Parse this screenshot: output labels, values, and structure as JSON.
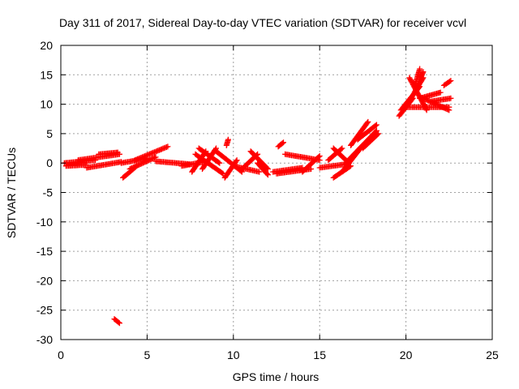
{
  "chart_data": {
    "type": "scatter",
    "title": "Day 311 of 2017, Sidereal Day-to-day VTEC variation (SDTVAR) for receiver vcvl",
    "xlabel": "GPS time / hours",
    "ylabel": "SDTVAR / TECUs",
    "xlim": [
      0,
      25
    ],
    "ylim": [
      -30,
      20
    ],
    "xticks": [
      0,
      5,
      10,
      15,
      20,
      25
    ],
    "yticks": [
      -30,
      -25,
      -20,
      -15,
      -10,
      -5,
      0,
      5,
      10,
      15,
      20
    ],
    "grid": true,
    "marker": "plus",
    "series_color": "#ff0000",
    "segments": [
      {
        "x0": 0.2,
        "x1": 2.0,
        "y0": 0.0,
        "y1": 0.5
      },
      {
        "x0": 0.3,
        "x1": 1.5,
        "y0": -0.5,
        "y1": -0.3
      },
      {
        "x0": 1.0,
        "x1": 3.4,
        "y0": 0.5,
        "y1": 1.5
      },
      {
        "x0": 1.5,
        "x1": 3.5,
        "y0": -0.8,
        "y1": 0.2
      },
      {
        "x0": 2.2,
        "x1": 3.3,
        "y0": 1.5,
        "y1": 1.8
      },
      {
        "x0": 3.6,
        "x1": 4.4,
        "y0": -2.5,
        "y1": -0.5
      },
      {
        "x0": 3.5,
        "x1": 5.0,
        "y0": 0.0,
        "y1": 0.8
      },
      {
        "x0": 4.0,
        "x1": 5.5,
        "y0": -1.0,
        "y1": 1.0
      },
      {
        "x0": 4.3,
        "x1": 6.2,
        "y0": 0.5,
        "y1": 2.8
      },
      {
        "x0": 5.5,
        "x1": 7.5,
        "y0": 0.3,
        "y1": -0.2
      },
      {
        "x0": 7.0,
        "x1": 8.5,
        "y0": -0.5,
        "y1": 0.3
      },
      {
        "x0": 7.6,
        "x1": 8.4,
        "y0": -1.5,
        "y1": 2.0
      },
      {
        "x0": 7.8,
        "x1": 9.4,
        "y0": 1.5,
        "y1": -1.8
      },
      {
        "x0": 8.0,
        "x1": 9.2,
        "y0": 2.5,
        "y1": 0.0
      },
      {
        "x0": 8.2,
        "x1": 9.0,
        "y0": -1.0,
        "y1": 2.5
      },
      {
        "x0": 9.0,
        "x1": 10.5,
        "y0": 2.0,
        "y1": -1.5
      },
      {
        "x0": 9.5,
        "x1": 10.2,
        "y0": -2.5,
        "y1": 0.5
      },
      {
        "x0": 9.6,
        "x1": 9.7,
        "y0": 3.0,
        "y1": 4.0
      },
      {
        "x0": 10.0,
        "x1": 11.5,
        "y0": -0.5,
        "y1": -1.5
      },
      {
        "x0": 10.5,
        "x1": 11.4,
        "y0": -1.0,
        "y1": 1.5
      },
      {
        "x0": 11.0,
        "x1": 12.0,
        "y0": 2.0,
        "y1": -1.0
      },
      {
        "x0": 11.4,
        "x1": 12.0,
        "y0": 0.0,
        "y1": -2.0
      },
      {
        "x0": 12.3,
        "x1": 14.0,
        "y0": -1.5,
        "y1": -0.8
      },
      {
        "x0": 12.6,
        "x1": 12.9,
        "y0": 2.8,
        "y1": 3.5
      },
      {
        "x0": 12.5,
        "x1": 14.5,
        "y0": -1.8,
        "y1": -1.0
      },
      {
        "x0": 13.0,
        "x1": 15.0,
        "y0": 1.5,
        "y1": 0.5
      },
      {
        "x0": 14.0,
        "x1": 15.0,
        "y0": -1.5,
        "y1": 1.2
      },
      {
        "x0": 15.0,
        "x1": 16.5,
        "y0": -0.8,
        "y1": -0.2
      },
      {
        "x0": 15.5,
        "x1": 16.3,
        "y0": 0.5,
        "y1": 2.5
      },
      {
        "x0": 15.8,
        "x1": 16.7,
        "y0": 2.5,
        "y1": 0.0
      },
      {
        "x0": 15.8,
        "x1": 16.8,
        "y0": -2.5,
        "y1": -0.5
      },
      {
        "x0": 16.3,
        "x1": 17.5,
        "y0": -1.5,
        "y1": 3.0
      },
      {
        "x0": 16.5,
        "x1": 18.3,
        "y0": 0.0,
        "y1": 5.5
      },
      {
        "x0": 16.8,
        "x1": 17.8,
        "y0": 3.0,
        "y1": 7.0
      },
      {
        "x0": 17.2,
        "x1": 18.3,
        "y0": 4.0,
        "y1": 6.5
      },
      {
        "x0": 17.5,
        "x1": 18.4,
        "y0": 2.5,
        "y1": 5.0
      },
      {
        "x0": 19.6,
        "x1": 20.4,
        "y0": 8.0,
        "y1": 11.0
      },
      {
        "x0": 19.7,
        "x1": 20.8,
        "y0": 9.0,
        "y1": 13.0
      },
      {
        "x0": 20.0,
        "x1": 22.5,
        "y0": 9.5,
        "y1": 9.5
      },
      {
        "x0": 20.2,
        "x1": 21.2,
        "y0": 14.5,
        "y1": 9.0
      },
      {
        "x0": 20.3,
        "x1": 21.0,
        "y0": 11.0,
        "y1": 14.5
      },
      {
        "x0": 20.5,
        "x1": 21.0,
        "y0": 12.0,
        "y1": 15.5
      },
      {
        "x0": 20.5,
        "x1": 20.8,
        "y0": 13.0,
        "y1": 16.0
      },
      {
        "x0": 20.8,
        "x1": 22.0,
        "y0": 11.0,
        "y1": 12.0
      },
      {
        "x0": 21.0,
        "x1": 22.5,
        "y0": 11.0,
        "y1": 9.0
      },
      {
        "x0": 21.5,
        "x1": 22.6,
        "y0": 10.5,
        "y1": 11.0
      },
      {
        "x0": 22.2,
        "x1": 22.6,
        "y0": 13.2,
        "y1": 14.0
      },
      {
        "x0": 3.1,
        "x1": 3.4,
        "y0": -26.5,
        "y1": -27.2
      }
    ]
  }
}
